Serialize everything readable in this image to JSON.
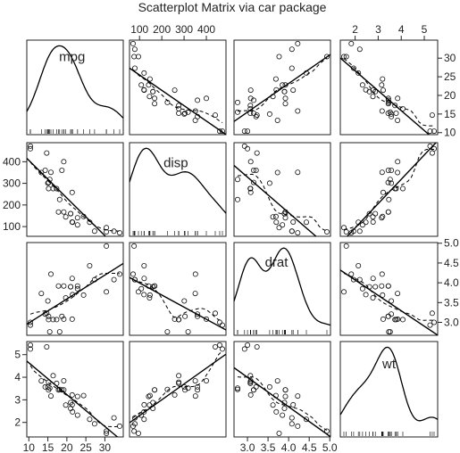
{
  "chart_data": {
    "type": "scatter",
    "title": "Scatterplot Matrix via car package",
    "variables": [
      "mpg",
      "disp",
      "drat",
      "wt"
    ],
    "ranges": {
      "mpg": [
        10.4,
        33.9
      ],
      "disp": [
        71.1,
        472
      ],
      "drat": [
        2.76,
        4.93
      ],
      "wt": [
        1.513,
        5.424
      ]
    },
    "ticks": {
      "mpg": [
        10,
        15,
        20,
        25,
        30
      ],
      "disp": [
        100,
        200,
        300,
        400
      ],
      "drat": [
        3.0,
        3.5,
        4.0,
        4.5,
        5.0
      ],
      "wt": [
        2,
        3,
        4,
        5
      ]
    },
    "tick_labels": {
      "mpg": [
        "10",
        "15",
        "20",
        "25",
        "30"
      ],
      "disp": [
        "100",
        "200",
        "300",
        "400"
      ],
      "drat": [
        "3.0",
        "3.5",
        "4.0",
        "4.5",
        "5.0"
      ],
      "wt": [
        "2",
        "3",
        "4",
        "5"
      ]
    },
    "diagonal": "density",
    "off_diagonal": "scatter with linear fit (solid) and smoother (dashed)",
    "observations": [
      {
        "mpg": 21.0,
        "disp": 160.0,
        "drat": 3.9,
        "wt": 2.62
      },
      {
        "mpg": 21.0,
        "disp": 160.0,
        "drat": 3.9,
        "wt": 2.875
      },
      {
        "mpg": 22.8,
        "disp": 108.0,
        "drat": 3.85,
        "wt": 2.32
      },
      {
        "mpg": 21.4,
        "disp": 258.0,
        "drat": 3.08,
        "wt": 3.215
      },
      {
        "mpg": 18.7,
        "disp": 360.0,
        "drat": 3.15,
        "wt": 3.44
      },
      {
        "mpg": 18.1,
        "disp": 225.0,
        "drat": 2.76,
        "wt": 3.46
      },
      {
        "mpg": 14.3,
        "disp": 360.0,
        "drat": 3.21,
        "wt": 3.57
      },
      {
        "mpg": 24.4,
        "disp": 146.7,
        "drat": 3.69,
        "wt": 3.19
      },
      {
        "mpg": 22.8,
        "disp": 140.8,
        "drat": 3.92,
        "wt": 3.15
      },
      {
        "mpg": 19.2,
        "disp": 167.6,
        "drat": 3.92,
        "wt": 3.44
      },
      {
        "mpg": 17.8,
        "disp": 167.6,
        "drat": 3.92,
        "wt": 3.44
      },
      {
        "mpg": 16.4,
        "disp": 275.8,
        "drat": 3.07,
        "wt": 4.07
      },
      {
        "mpg": 17.3,
        "disp": 275.8,
        "drat": 3.07,
        "wt": 3.73
      },
      {
        "mpg": 15.2,
        "disp": 275.8,
        "drat": 3.07,
        "wt": 3.78
      },
      {
        "mpg": 10.4,
        "disp": 472.0,
        "drat": 2.93,
        "wt": 5.25
      },
      {
        "mpg": 10.4,
        "disp": 460.0,
        "drat": 3.0,
        "wt": 5.424
      },
      {
        "mpg": 14.7,
        "disp": 440.0,
        "drat": 3.23,
        "wt": 5.345
      },
      {
        "mpg": 32.4,
        "disp": 78.7,
        "drat": 4.08,
        "wt": 2.2
      },
      {
        "mpg": 30.4,
        "disp": 75.7,
        "drat": 4.93,
        "wt": 1.615
      },
      {
        "mpg": 33.9,
        "disp": 71.1,
        "drat": 4.22,
        "wt": 1.835
      },
      {
        "mpg": 21.5,
        "disp": 120.1,
        "drat": 3.7,
        "wt": 2.465
      },
      {
        "mpg": 15.5,
        "disp": 318.0,
        "drat": 2.76,
        "wt": 3.52
      },
      {
        "mpg": 15.2,
        "disp": 304.0,
        "drat": 3.15,
        "wt": 3.435
      },
      {
        "mpg": 13.3,
        "disp": 350.0,
        "drat": 3.73,
        "wt": 3.84
      },
      {
        "mpg": 19.2,
        "disp": 400.0,
        "drat": 3.08,
        "wt": 3.845
      },
      {
        "mpg": 27.3,
        "disp": 79.0,
        "drat": 4.08,
        "wt": 1.935
      },
      {
        "mpg": 26.0,
        "disp": 120.3,
        "drat": 4.43,
        "wt": 2.14
      },
      {
        "mpg": 30.4,
        "disp": 95.1,
        "drat": 3.77,
        "wt": 1.513
      },
      {
        "mpg": 15.8,
        "disp": 351.0,
        "drat": 4.22,
        "wt": 3.17
      },
      {
        "mpg": 19.7,
        "disp": 145.0,
        "drat": 3.62,
        "wt": 2.77
      },
      {
        "mpg": 15.0,
        "disp": 301.0,
        "drat": 3.54,
        "wt": 3.57
      },
      {
        "mpg": 21.4,
        "disp": 121.0,
        "drat": 4.11,
        "wt": 2.78
      }
    ]
  }
}
